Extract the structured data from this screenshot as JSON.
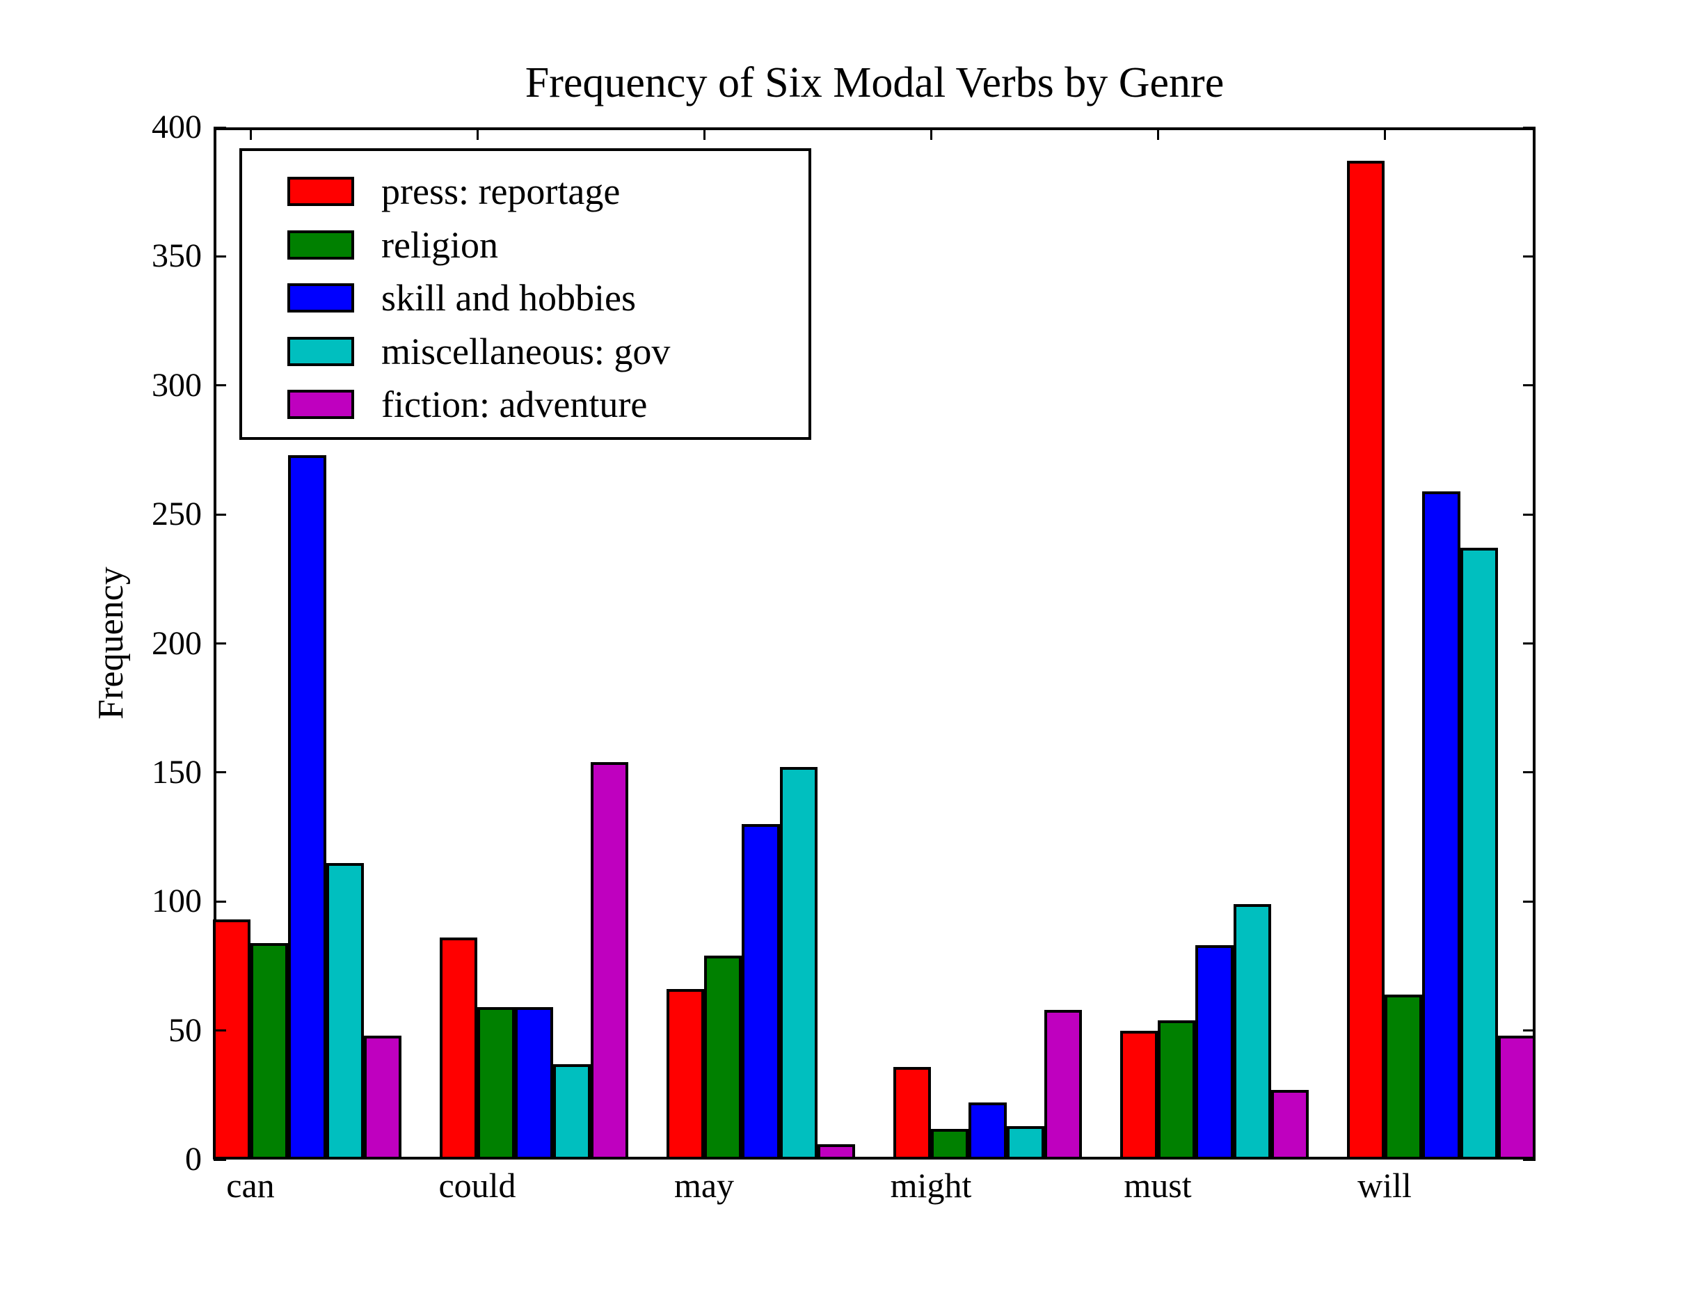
{
  "figure": {
    "title": "Frequency of Six Modal Verbs by Genre",
    "ylabel": "Frequency"
  },
  "chart_data": {
    "type": "bar",
    "title": "Frequency of Six Modal Verbs by Genre",
    "xlabel": "",
    "ylabel": "Frequency",
    "categories": [
      "can",
      "could",
      "may",
      "might",
      "must",
      "will"
    ],
    "series": [
      {
        "name": "press: reportage",
        "color": "#ff0000",
        "values": [
          93,
          86,
          66,
          36,
          50,
          387
        ]
      },
      {
        "name": "religion",
        "color": "#008000",
        "values": [
          84,
          59,
          79,
          12,
          54,
          64
        ]
      },
      {
        "name": "skill and hobbies",
        "color": "#0000ff",
        "values": [
          273,
          59,
          130,
          22,
          83,
          259
        ]
      },
      {
        "name": "miscellaneous: gov",
        "color": "#00bfbf",
        "values": [
          115,
          37,
          152,
          13,
          99,
          237
        ]
      },
      {
        "name": "fiction: adventure",
        "color": "#bf00bf",
        "values": [
          48,
          154,
          6,
          58,
          27,
          48
        ]
      }
    ],
    "ylim": [
      0,
      400
    ],
    "yticks": [
      0,
      50,
      100,
      150,
      200,
      250,
      300,
      350,
      400
    ],
    "grid": false,
    "legend_position": "upper left",
    "bar_edge_color": "#000000",
    "axes_color": "#000000"
  }
}
